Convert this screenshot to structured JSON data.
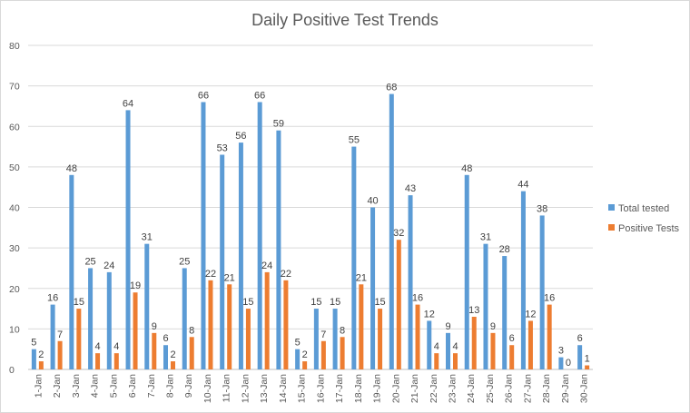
{
  "chart_data": {
    "type": "bar",
    "title": "Daily Positive Test Trends",
    "xlabel": "",
    "ylabel": "",
    "ylim": [
      0,
      80
    ],
    "yticks": [
      0,
      10,
      20,
      30,
      40,
      50,
      60,
      70,
      80
    ],
    "grid": true,
    "legend_position": "right",
    "categories": [
      "1-Jan",
      "2-Jan",
      "3-Jan",
      "4-Jan",
      "5-Jan",
      "6-Jan",
      "7-Jan",
      "8-Jan",
      "9-Jan",
      "10-Jan",
      "11-Jan",
      "12-Jan",
      "13-Jan",
      "14-Jan",
      "15-Jan",
      "16-Jan",
      "17-Jan",
      "18-Jan",
      "19-Jan",
      "20-Jan",
      "21-Jan",
      "22-Jan",
      "23-Jan",
      "24-Jan",
      "25-Jan",
      "26-Jan",
      "27-Jan",
      "28-Jan",
      "29-Jan",
      "30-Jan"
    ],
    "series": [
      {
        "name": "Total tested",
        "color": "#5b9bd5",
        "values": [
          5,
          16,
          48,
          25,
          24,
          64,
          31,
          6,
          25,
          66,
          53,
          56,
          66,
          59,
          5,
          15,
          15,
          55,
          40,
          68,
          43,
          12,
          9,
          48,
          31,
          28,
          44,
          38,
          3,
          6
        ]
      },
      {
        "name": "Positive Tests",
        "color": "#ed7d31",
        "values": [
          2,
          7,
          15,
          4,
          4,
          19,
          9,
          2,
          8,
          22,
          21,
          15,
          24,
          22,
          2,
          7,
          8,
          21,
          15,
          32,
          16,
          4,
          4,
          13,
          9,
          6,
          12,
          16,
          0,
          1
        ]
      }
    ]
  }
}
